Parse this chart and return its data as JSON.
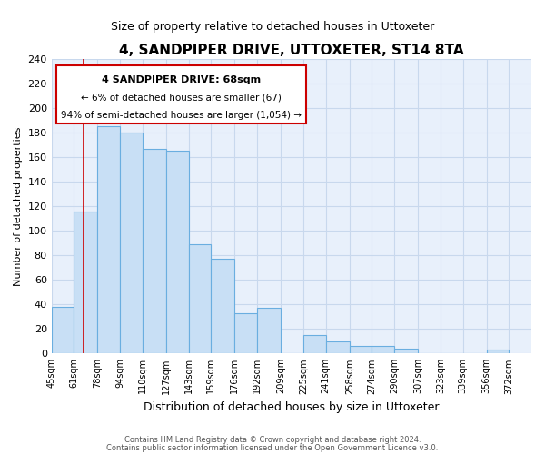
{
  "title": "4, SANDPIPER DRIVE, UTTOXETER, ST14 8TA",
  "subtitle": "Size of property relative to detached houses in Uttoxeter",
  "xlabel": "Distribution of detached houses by size in Uttoxeter",
  "ylabel": "Number of detached properties",
  "bar_left_edges": [
    45,
    61,
    78,
    94,
    110,
    127,
    143,
    159,
    176,
    192,
    209,
    225,
    241,
    258,
    274,
    290,
    307,
    323,
    339,
    356
  ],
  "bar_widths": [
    16,
    17,
    16,
    16,
    17,
    16,
    16,
    17,
    16,
    17,
    16,
    16,
    17,
    16,
    16,
    17,
    16,
    16,
    17,
    16
  ],
  "bar_heights": [
    38,
    116,
    185,
    180,
    167,
    165,
    89,
    77,
    33,
    37,
    0,
    15,
    10,
    6,
    6,
    4,
    0,
    0,
    0,
    3
  ],
  "tick_labels": [
    "45sqm",
    "61sqm",
    "78sqm",
    "94sqm",
    "110sqm",
    "127sqm",
    "143sqm",
    "159sqm",
    "176sqm",
    "192sqm",
    "209sqm",
    "225sqm",
    "241sqm",
    "258sqm",
    "274sqm",
    "290sqm",
    "307sqm",
    "323sqm",
    "339sqm",
    "356sqm",
    "372sqm"
  ],
  "tick_positions": [
    45,
    61,
    78,
    94,
    110,
    127,
    143,
    159,
    176,
    192,
    209,
    225,
    241,
    258,
    274,
    290,
    307,
    323,
    339,
    356,
    372
  ],
  "bar_color": "#c8dff5",
  "bar_edge_color": "#6aaee0",
  "highlight_line_x": 68,
  "highlight_line_color": "#cc0000",
  "ylim": [
    0,
    240
  ],
  "xlim": [
    45,
    388
  ],
  "yticks": [
    0,
    20,
    40,
    60,
    80,
    100,
    120,
    140,
    160,
    180,
    200,
    220,
    240
  ],
  "ann_line1": "4 SANDPIPER DRIVE: 68sqm",
  "ann_line2": "← 6% of detached houses are smaller (67)",
  "ann_line3": "94% of semi-detached houses are larger (1,054) →",
  "footer_line1": "Contains HM Land Registry data © Crown copyright and database right 2024.",
  "footer_line2": "Contains public sector information licensed under the Open Government Licence v3.0.",
  "grid_color": "#c8d8ed",
  "background_color": "#e8f0fb"
}
